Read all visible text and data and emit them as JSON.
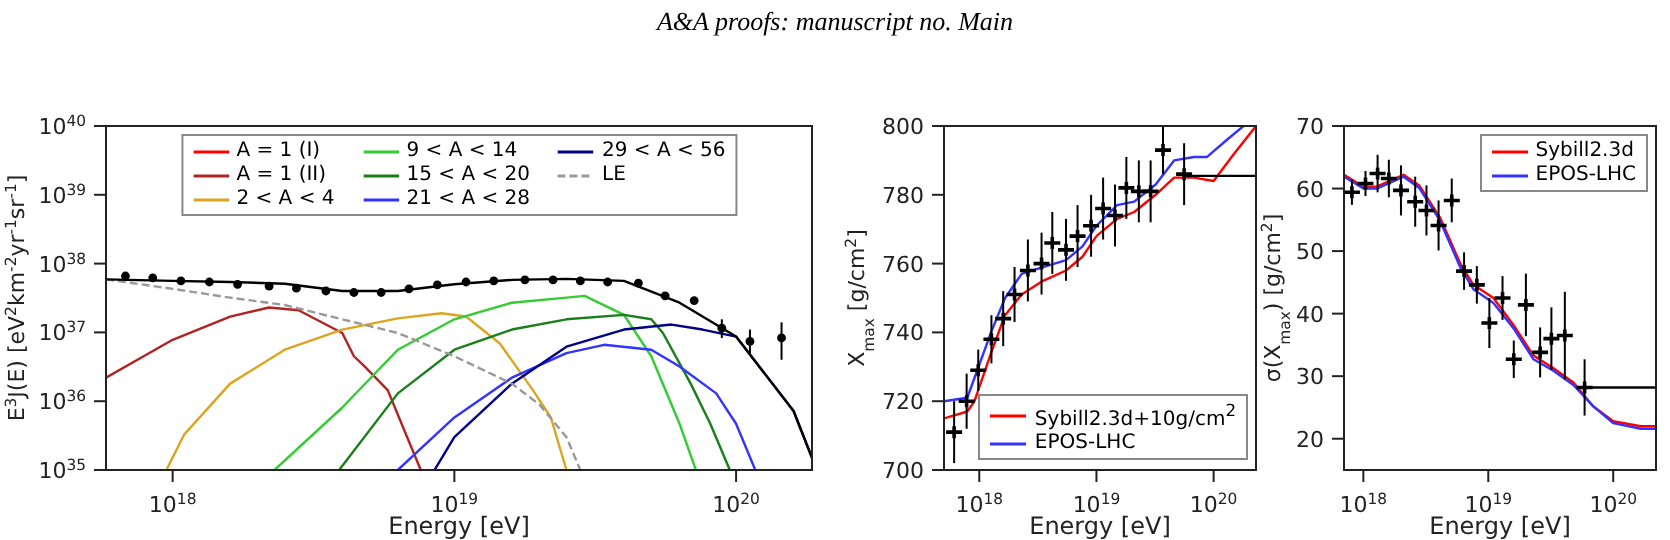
{
  "chart_data": [
    {
      "type": "line",
      "annotations": [
        "A&A proofs: manuscript no. Main"
      ],
      "xlabel": "Energy [eV]",
      "ylabel": "E$^{3}$J(E) [eV$^{2}$km$^{-2}$yr$^{-1}$sr$^{-1}$]",
      "log": "xy",
      "legend": "top",
      "marker": "none",
      "xlim": [
        5.8e+17,
        1.86e+20
      ],
      "ylim": [
        1e+35,
        1e+40
      ],
      "xticks": [
        {
          "value": 1e+18,
          "label": "10$^{18}$"
        },
        {
          "value": 1e+19,
          "label": "10$^{19}$"
        },
        {
          "value": 1e+20,
          "label": "10$^{20}$"
        }
      ],
      "yticks": [
        {
          "value": 1e+35,
          "label": "10$^{35}$"
        },
        {
          "value": 1e+36,
          "label": "10$^{36}$"
        },
        {
          "value": 1e+37,
          "label": "10$^{37}$"
        },
        {
          "value": 1e+38,
          "label": "10$^{38}$"
        },
        {
          "value": 1e+39,
          "label": "10$^{39}$"
        },
        {
          "value": 1e+40,
          "label": "10$^{40}$"
        }
      ],
      "series": [
        {
          "name": "A = 1 (I)",
          "color": "#ff0000"
        },
        {
          "name": "A = 1 (II)",
          "color": "#b22222",
          "x": [
            5.8e+17,
            1e+18,
            1.6e+18,
            2.2e+18,
            2.8e+18,
            4e+18,
            4.4e+18,
            4.8e+18,
            5.8e+18,
            6.8e+18,
            7.6e+18
          ],
          "values": [
            2.2e+36,
            7.8e+36,
            1.7e+37,
            2.3e+37,
            2.1e+37,
            9.8e+36,
            4.5e+36,
            3.2e+36,
            1.45e+36,
            3e+35,
            1e+35
          ]
        },
        {
          "name": "2 < A < 4",
          "color": "#daa520",
          "x": [
            9.5e+17,
            1.1e+18,
            1.6e+18,
            2.5e+18,
            4e+18,
            6.3e+18,
            9e+18,
            1.1e+19,
            1.45e+19,
            1.9e+19,
            2.2e+19,
            2.5e+19
          ],
          "values": [
            1e+35,
            3.3e+35,
            1.8e+36,
            5.6e+36,
            1.1e+37,
            1.6e+37,
            1.9e+37,
            1.7e+37,
            6.9e+36,
            1.45e+36,
            5.8e+35,
            1e+35
          ]
        },
        {
          "name": "9 < A < 14",
          "color": "#33cc33",
          "x": [
            2.3e+18,
            4e+18,
            6.3e+18,
            1e+19,
            1.6e+19,
            2.5e+19,
            2.9e+19,
            4e+19,
            5e+19,
            6.3e+19,
            7.2e+19
          ],
          "values": [
            1e+35,
            8.1e+35,
            5.6e+36,
            1.55e+37,
            2.7e+37,
            3.2e+37,
            3.4e+37,
            1.8e+37,
            4.5e+36,
            4.7e+35,
            1e+35
          ]
        },
        {
          "name": "15 < A < 20",
          "color": "#1a7f1a",
          "x": [
            3.9e+18,
            6.3e+18,
            1e+19,
            1.6e+19,
            2.5e+19,
            4e+19,
            5e+19,
            5.5e+19,
            6.9e+19,
            8.1e+19,
            9.5e+19
          ],
          "values": [
            1e+35,
            1.3e+36,
            5.6e+36,
            1.1e+37,
            1.55e+37,
            1.8e+37,
            1.55e+37,
            9.8e+36,
            1.8e+36,
            4.7e+35,
            1e+35
          ]
        },
        {
          "name": "21 < A < 28",
          "color": "#3333ff",
          "x": [
            6.3e+18,
            1e+19,
            1.6e+19,
            2.5e+19,
            3.4e+19,
            5e+19,
            6.3e+19,
            8.5e+19,
            1e+20,
            1.17e+20
          ],
          "values": [
            1e+35,
            5.8e+35,
            2.2e+36,
            5e+36,
            6.6e+36,
            5.6e+36,
            3.2e+36,
            1.3e+36,
            4.7e+35,
            1e+35
          ]
        },
        {
          "name": "29 < A < 56",
          "color": "#00008b",
          "x": [
            8.5e+18,
            1e+19,
            1.6e+19,
            2.5e+19,
            4e+19,
            5.9e+19,
            7.6e+19,
            1e+20,
            1.6e+20,
            1.86e+20
          ],
          "values": [
            1e+35,
            3e+35,
            1.8e+36,
            6.2e+36,
            1.1e+37,
            1.3e+37,
            1.1e+37,
            8.7e+36,
            7.2e+35,
            1.5e+35
          ]
        },
        {
          "name": "LE",
          "color": "#999999",
          "line_style": "dashed",
          "x": [
            5.8e+17,
            1e+18,
            1.6e+18,
            2.5e+18,
            4e+18,
            6.3e+18,
            1e+19,
            1.6e+19,
            2e+19,
            2.5e+19,
            2.8e+19
          ],
          "values": [
            5.9e+37,
            4.3e+37,
            3.2e+37,
            2.5e+37,
            1.55e+37,
            9.8e+36,
            4.5e+36,
            1.8e+36,
            9e+35,
            3e+35,
            1e+35
          ]
        },
        {
          "color": "#000000",
          "x": [
            5.8e+17,
            1e+18,
            1.6e+18,
            2.5e+18,
            4e+18,
            6.3e+18,
            1e+19,
            1.6e+19,
            2.5e+19,
            4e+19,
            6.3e+19,
            1e+20,
            1.6e+20,
            1.86e+20
          ],
          "values": [
            5.9e+37,
            5.6e+37,
            5.4e+37,
            5.1e+37,
            4e+37,
            4e+37,
            5e+37,
            5.8e+37,
            6e+37,
            5.6e+37,
            2.7e+37,
            8.7e+36,
            7.2e+35,
            1.5e+35
          ]
        },
        {
          "type": "scatter",
          "marker": "circle",
          "color": "#000000",
          "x": [
            6.8e+17,
            8.5e+17,
            1.07e+18,
            1.35e+18,
            1.7e+18,
            2.2e+18,
            2.75e+18,
            3.5e+18,
            4.4e+18,
            5.5e+18,
            6.9e+18,
            8.7e+18,
            1.1e+19,
            1.38e+19,
            1.78e+19,
            2.24e+19,
            2.8e+19,
            3.5e+19,
            4.5e+19,
            5.6e+19,
            7.1e+19,
            8.9e+19,
            1.12e+20,
            1.45e+20
          ],
          "values": [
            6.6e+37,
            6.2e+37,
            5.6e+37,
            5.4e+37,
            5e+37,
            4.7e+37,
            4.4e+37,
            4e+37,
            3.8e+37,
            3.8e+37,
            4.3e+37,
            4.9e+37,
            5.4e+37,
            5.6e+37,
            5.8e+37,
            5.8e+37,
            5.6e+37,
            5.4e+37,
            5.2e+37,
            3.4e+37,
            2.9e+37,
            1.15e+37,
            7.4e+36,
            8.3e+36
          ],
          "errors": [
            null,
            null,
            null,
            null,
            null,
            null,
            null,
            null,
            null,
            null,
            null,
            null,
            null,
            null,
            null,
            null,
            null,
            null,
            null,
            null,
            null,
            [
              8.3e+36,
              1.55e+37
            ],
            [
              5e+36,
              1.1e+37
            ],
            [
              4e+36,
              1.4e+37
            ]
          ]
        }
      ]
    },
    {
      "type": "line",
      "xlabel": "Energy [eV]",
      "ylabel": "X$_{max}$ [g/cm$^{2}$]",
      "log": "x",
      "legend": "bottom right",
      "marker": "none",
      "xlim": [
        5e+17,
        2.3e+20
      ],
      "ylim": [
        700,
        800
      ],
      "xticks": [
        {
          "value": 1e+18,
          "label": "10$^{18}$"
        },
        {
          "value": 1e+19,
          "label": "10$^{19}$"
        },
        {
          "value": 1e+20,
          "label": "10$^{20}$"
        }
      ],
      "yticks": [
        700,
        720,
        740,
        760,
        780,
        800
      ],
      "series": [
        {
          "name": "Sybill2.3d+10g/cm$^{2}$",
          "color": "#ff0000",
          "x": [
            5e+17,
            7.9e+17,
            9.1e+17,
            1.26e+18,
            1.66e+18,
            2.3e+18,
            3.5e+18,
            5.5e+18,
            7.6e+18,
            1e+19,
            1.5e+19,
            2.1e+19,
            3.2e+19,
            4.6e+19,
            6.8e+19,
            1e+20,
            1.5e+20,
            2.3e+20
          ],
          "values": [
            715,
            717,
            720,
            734,
            745,
            751,
            755,
            758,
            762,
            768,
            773,
            775,
            780,
            785,
            785,
            784,
            792,
            800
          ]
        },
        {
          "name": "EPOS-LHC",
          "color": "#3333ff",
          "x": [
            5e+17,
            7.9e+17,
            1.26e+18,
            1.66e+18,
            2.3e+18,
            3.5e+18,
            5.5e+18,
            7.6e+18,
            1e+19,
            1.5e+19,
            2.1e+19,
            3.2e+19,
            4.6e+19,
            6.8e+19,
            8.8e+19,
            1.3e+20,
            1.8e+20
          ],
          "values": [
            720,
            721,
            740,
            750,
            757,
            759,
            761,
            765,
            771,
            777,
            778,
            783,
            790,
            791,
            791,
            796,
            800
          ]
        },
        {
          "color": "#000000",
          "x": [
            5.6e+19,
            2.3e+20
          ],
          "values": [
            785.5,
            785.5
          ]
        },
        {
          "type": "scatter",
          "marker": "cross",
          "color": "#000000",
          "x": [
            6.1e+17,
            7.8e+17,
            9.8e+17,
            1.27e+18,
            1.6e+18,
            2e+18,
            2.6e+18,
            3.4e+18,
            4.2e+18,
            5.5e+18,
            6.9e+18,
            9e+18,
            1.14e+19,
            1.44e+19,
            1.8e+19,
            2.3e+19,
            2.9e+19,
            3.7e+19,
            5.6e+19
          ],
          "values": [
            711,
            720,
            729,
            738,
            744,
            751,
            758,
            760,
            766,
            764,
            768,
            771,
            776,
            774,
            782,
            781,
            781,
            793,
            786
          ],
          "errors": [
            9,
            8,
            6,
            7,
            8,
            8,
            9,
            9,
            9,
            9,
            9,
            9,
            9,
            9,
            9,
            9,
            9,
            7,
            9
          ]
        }
      ]
    },
    {
      "type": "line",
      "xlabel": "Energy [eV]",
      "ylabel": "σ(X$_{max}$) [g/cm$^{2}$]",
      "log": "x",
      "legend": "top right",
      "marker": "none",
      "xlim": [
        7e+17,
        2.2e+20
      ],
      "ylim": [
        15,
        70
      ],
      "xticks": [
        {
          "value": 1e+18,
          "label": "10$^{18}$"
        },
        {
          "value": 1e+19,
          "label": "10$^{19}$"
        },
        {
          "value": 1e+20,
          "label": "10$^{20}$"
        }
      ],
      "yticks": [
        20,
        30,
        40,
        50,
        60,
        70
      ],
      "series": [
        {
          "name": "Sybill2.3d",
          "color": "#ff0000",
          "x": [
            7e+17,
            1e+18,
            1.28e+18,
            2.1e+18,
            2.8e+18,
            4.1e+18,
            6e+18,
            7.6e+18,
            1.1e+19,
            1.6e+19,
            2.3e+19,
            3.3e+19,
            4.8e+19,
            6.9e+19,
            1e+20,
            1.66e+20,
            2.2e+20
          ],
          "values": [
            62.2,
            60.3,
            60.3,
            62.2,
            60.5,
            55.4,
            47.9,
            44.6,
            42.5,
            38.1,
            33.3,
            31.3,
            29.0,
            25.2,
            22.8,
            22.0,
            22.0
          ]
        },
        {
          "name": "EPOS-LHC",
          "color": "#3333ff",
          "x": [
            7e+17,
            1e+18,
            1.28e+18,
            2.1e+18,
            2.8e+18,
            4.1e+18,
            6e+18,
            7.6e+18,
            1.1e+19,
            1.6e+19,
            2.3e+19,
            3.3e+19,
            4.8e+19,
            6.9e+19,
            1e+20,
            1.66e+20,
            2.2e+20
          ],
          "values": [
            61.9,
            60.0,
            60.0,
            61.9,
            60.1,
            54.9,
            47.3,
            43.9,
            41.7,
            37.6,
            32.7,
            30.9,
            28.6,
            25.2,
            22.5,
            21.6,
            21.6
          ]
        },
        {
          "color": "#000000",
          "x": [
            5.9e+19,
            2.2e+20
          ],
          "values": [
            28.2,
            28.2
          ]
        },
        {
          "type": "scatter",
          "marker": "cross",
          "color": "#000000",
          "x": [
            8.1e+17,
            1.04e+18,
            1.3e+18,
            1.6e+18,
            2e+18,
            2.6e+18,
            3.2e+18,
            4e+18,
            5.1e+18,
            6.4e+18,
            8.1e+18,
            1.02e+19,
            1.3e+19,
            1.6e+19,
            2e+19,
            2.6e+19,
            3.2e+19,
            4.1e+19,
            5.9e+19
          ],
          "values": [
            59.4,
            60.8,
            62.4,
            61.6,
            59.7,
            57.9,
            56.5,
            54.1,
            58.1,
            46.8,
            44.6,
            38.5,
            42.5,
            32.7,
            41.4,
            33.8,
            36.0,
            36.5,
            28.2
          ],
          "errors": [
            2,
            2,
            3,
            3,
            4,
            4,
            4,
            4,
            3.5,
            3,
            3,
            4,
            3.5,
            3,
            5,
            4,
            5,
            7,
            4.5
          ]
        }
      ]
    }
  ]
}
